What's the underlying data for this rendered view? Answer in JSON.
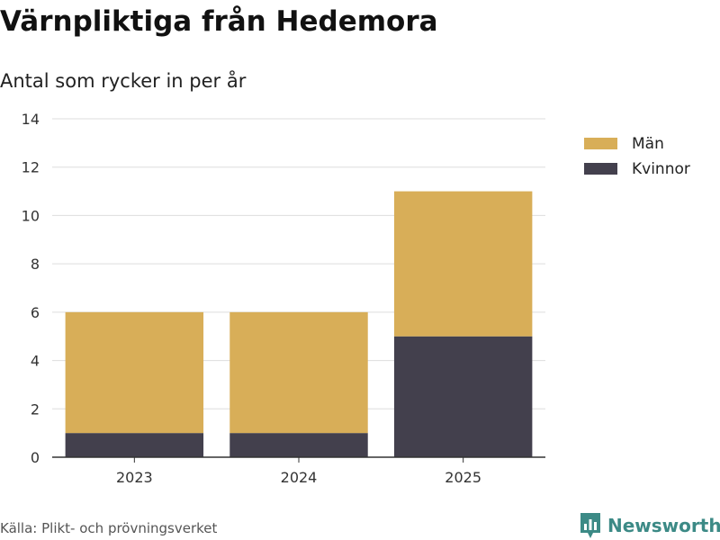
{
  "title": "Värnpliktiga från Hedemora",
  "subtitle": "Antal som rycker in per år",
  "source": "Källa: Plikt- och prövningsverket",
  "brand": {
    "name": "Newsworthy",
    "icon": "newsworthy-logo-icon",
    "color": "#3c8a86"
  },
  "chart_data": {
    "type": "bar",
    "stacked": true,
    "categories": [
      "2023",
      "2024",
      "2025"
    ],
    "series": [
      {
        "name": "Kvinnor",
        "values": [
          1,
          1,
          5
        ],
        "color": "#43404d"
      },
      {
        "name": "Män",
        "values": [
          5,
          5,
          6
        ],
        "color": "#d8ae58"
      }
    ],
    "title": "Värnpliktiga från Hedemora",
    "subtitle": "Antal som rycker in per år",
    "xlabel": "",
    "ylabel": "",
    "ylim": [
      0,
      14
    ],
    "yticks": [
      0,
      2,
      4,
      6,
      8,
      10,
      12,
      14
    ],
    "grid": true,
    "legend_position": "right",
    "legend_order": [
      "Män",
      "Kvinnor"
    ]
  }
}
